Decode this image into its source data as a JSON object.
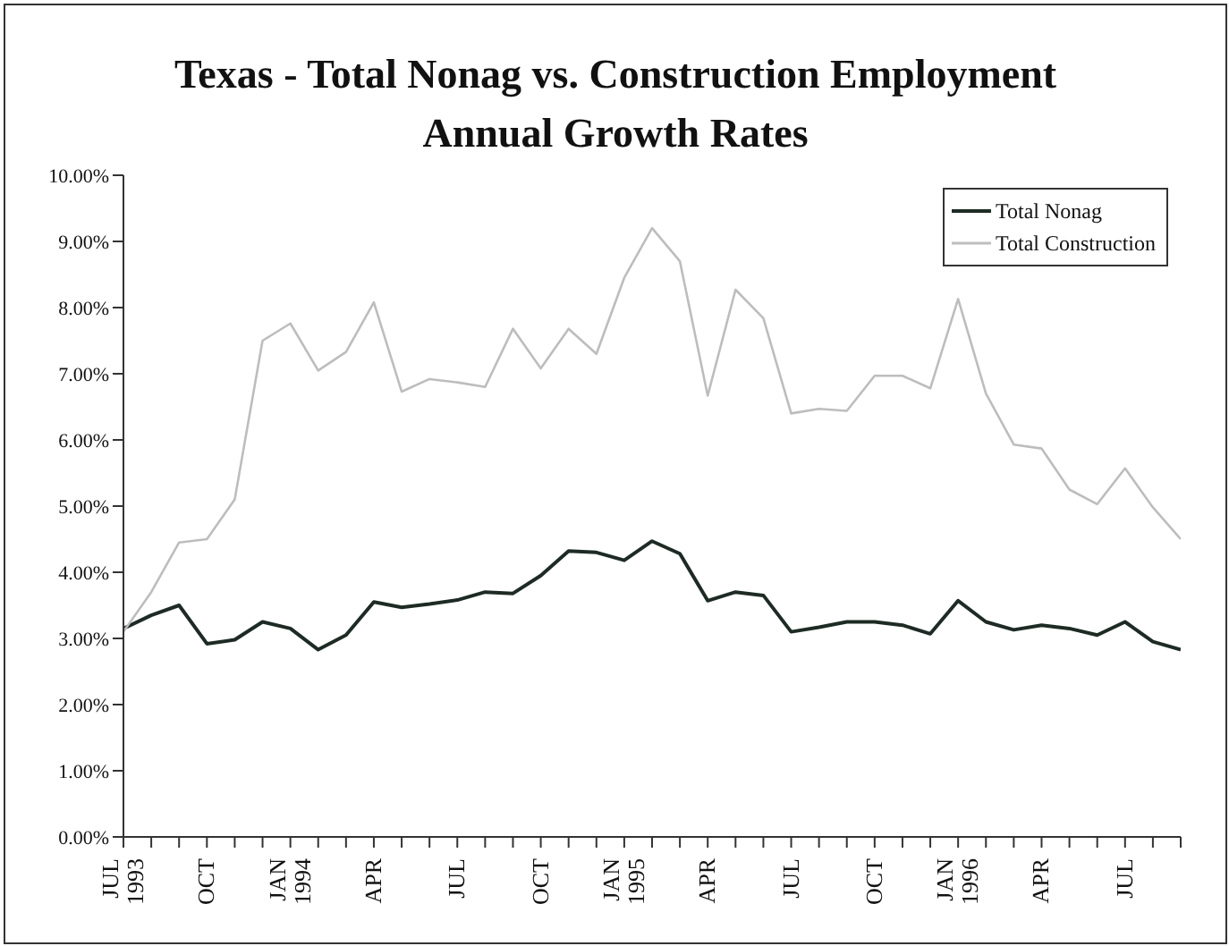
{
  "chart_data": {
    "type": "line",
    "title": "Texas - Total Nonag vs. Construction Employment",
    "subtitle": "Annual Growth Rates",
    "categories": [
      "JUL 1993",
      null,
      null,
      "OCT",
      null,
      null,
      "JAN 1994",
      null,
      null,
      "APR",
      null,
      null,
      "JUL",
      null,
      null,
      "OCT",
      null,
      null,
      "JAN 1995",
      null,
      null,
      "APR",
      null,
      null,
      "JUL",
      null,
      null,
      "OCT",
      null,
      null,
      "JAN 1996",
      null,
      null,
      "APR",
      null,
      null,
      "JUL",
      null,
      null
    ],
    "series": [
      {
        "name": "Total Nonag",
        "color": "#1e2b25",
        "values": [
          3.15,
          3.35,
          3.5,
          2.92,
          2.98,
          3.25,
          3.15,
          2.83,
          3.05,
          3.55,
          3.47,
          3.52,
          3.58,
          3.7,
          3.68,
          3.95,
          4.32,
          4.3,
          4.18,
          4.47,
          4.28,
          3.57,
          3.7,
          3.65,
          3.1,
          3.17,
          3.25,
          3.25,
          3.2,
          3.07,
          3.57,
          3.25,
          3.13,
          3.2,
          3.15,
          3.05,
          3.25,
          2.95,
          2.83
        ]
      },
      {
        "name": "Total Construction",
        "color": "#bdbdbd",
        "values": [
          3.1,
          3.7,
          4.45,
          4.5,
          5.1,
          7.5,
          7.76,
          7.05,
          7.33,
          8.08,
          6.73,
          6.92,
          6.87,
          6.8,
          7.68,
          7.08,
          7.68,
          7.3,
          8.45,
          9.2,
          8.7,
          6.67,
          8.27,
          7.84,
          6.4,
          6.47,
          6.44,
          6.97,
          6.97,
          6.78,
          8.13,
          6.7,
          5.93,
          5.87,
          5.25,
          5.03,
          5.57,
          4.98,
          4.5
        ]
      }
    ],
    "ylim": [
      0,
      10
    ],
    "yticks": [
      {
        "value": 0,
        "label": "0.00%"
      },
      {
        "value": 1,
        "label": "1.00%"
      },
      {
        "value": 2,
        "label": "2.00%"
      },
      {
        "value": 3,
        "label": "3.00%"
      },
      {
        "value": 4,
        "label": "4.00%"
      },
      {
        "value": 5,
        "label": "5.00%"
      },
      {
        "value": 6,
        "label": "6.00%"
      },
      {
        "value": 7,
        "label": "7.00%"
      },
      {
        "value": 8,
        "label": "8.00%"
      },
      {
        "value": 9,
        "label": "9.00%"
      },
      {
        "value": 10,
        "label": "10.00%"
      }
    ],
    "legend": "top right",
    "marker": "none",
    "line_style": "solid",
    "grid": false
  }
}
